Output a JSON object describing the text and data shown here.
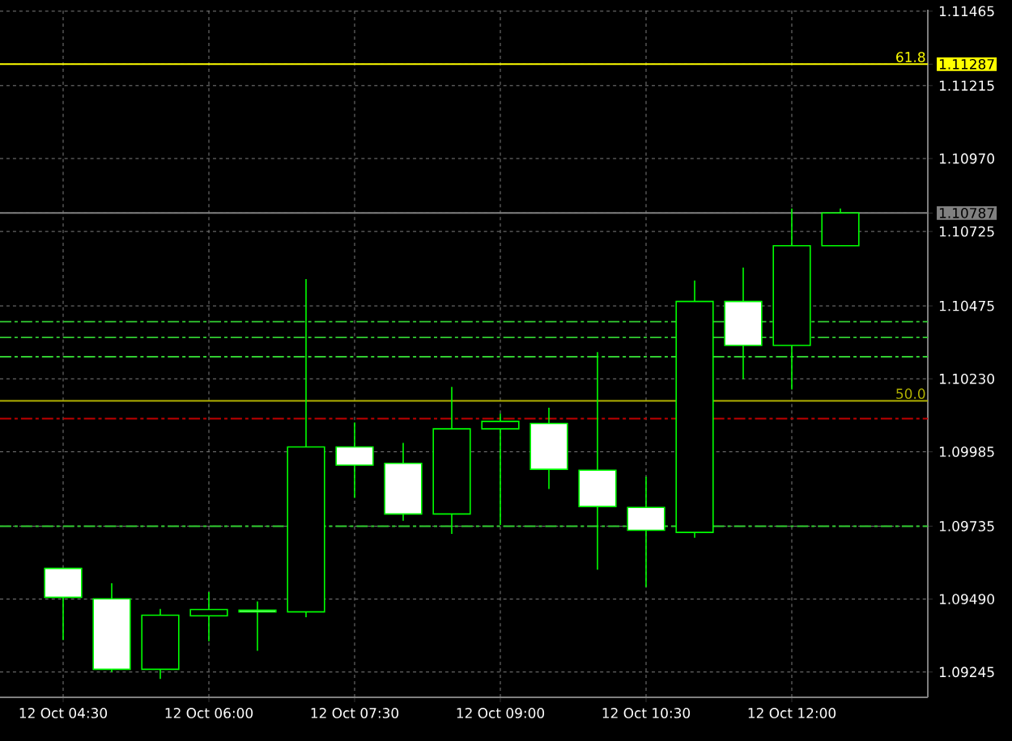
{
  "chart_data": {
    "type": "candlestick",
    "color": "#00ff00",
    "categories": [
      "12 Oct 04:30",
      null,
      null,
      "12 Oct 06:00",
      null,
      null,
      "12 Oct 07:30",
      null,
      null,
      "12 Oct 09:00",
      null,
      null,
      "12 Oct 10:30",
      null,
      null,
      "12 Oct 12:00",
      null
    ],
    "ohlc": [
      [
        1.09593,
        1.09593,
        1.09352,
        1.09496
      ],
      [
        1.09491,
        1.09543,
        1.09245,
        1.09254
      ],
      [
        1.09254,
        1.09457,
        1.09222,
        1.09436
      ],
      [
        1.09434,
        1.09513,
        1.09348,
        1.09455
      ],
      [
        1.09453,
        1.09482,
        1.09316,
        1.09447
      ],
      [
        1.09447,
        1.10565,
        1.09429,
        1.10001
      ],
      [
        1.10001,
        1.10083,
        1.0983,
        1.0994
      ],
      [
        1.09946,
        1.10015,
        1.09753,
        1.09776
      ],
      [
        1.09776,
        1.10203,
        1.09709,
        1.10062
      ],
      [
        1.10062,
        1.10113,
        1.09739,
        1.10087
      ],
      [
        1.1008,
        1.10133,
        1.0986,
        1.09926
      ],
      [
        1.09923,
        1.1032,
        1.09589,
        1.09801
      ],
      [
        1.09798,
        1.09901,
        1.0953,
        1.09721
      ],
      [
        1.09714,
        1.1056,
        1.09696,
        1.1049
      ],
      [
        1.1049,
        1.10604,
        1.10229,
        1.10342
      ],
      [
        1.10342,
        1.10802,
        1.10194,
        1.10677
      ],
      [
        1.10677,
        1.10802,
        1.10677,
        1.10787
      ]
    ],
    "ylim": [
      1.0916,
      1.1147
    ],
    "yticks": [
      1.09245,
      {
        "value": 1.0949,
        "label": "1.09490"
      },
      1.09735,
      1.09985,
      {
        "value": 1.1023,
        "label": "1.10230"
      },
      1.10475,
      1.10725,
      {
        "value": 1.1097,
        "label": "1.10970"
      },
      1.11215,
      1.11465,
      1.11287,
      1.10787
    ],
    "grid": true,
    "ref_lines": [
      {
        "axis": "y",
        "value": 1.11287,
        "color": "#ffff00",
        "line_style": "solid"
      },
      {
        "axis": "y",
        "value": 1.10787,
        "color": "#808080",
        "line_style": "solid"
      },
      {
        "axis": "y",
        "value": 1.10156,
        "color": "#b0b000",
        "line_style": "solid"
      },
      {
        "axis": "y",
        "value": 1.10096,
        "color": "#c00000",
        "line_style": "dashdot"
      },
      {
        "axis": "y",
        "value": 1.10422,
        "color": "#32cd32",
        "line_style": "dashdot"
      },
      {
        "axis": "y",
        "value": 1.10369,
        "color": "#32cd32",
        "line_style": "dashdot"
      },
      {
        "axis": "y",
        "value": 1.10304,
        "color": "#32cd32",
        "line_style": "dashdot"
      },
      {
        "axis": "y",
        "value": 1.09735,
        "color": "#32cd32",
        "line_style": "dashdot"
      }
    ],
    "annotations": [
      {
        "text": "61.8",
        "y": 1.11287
      },
      {
        "text": "50.0",
        "y": 1.10156
      }
    ]
  }
}
